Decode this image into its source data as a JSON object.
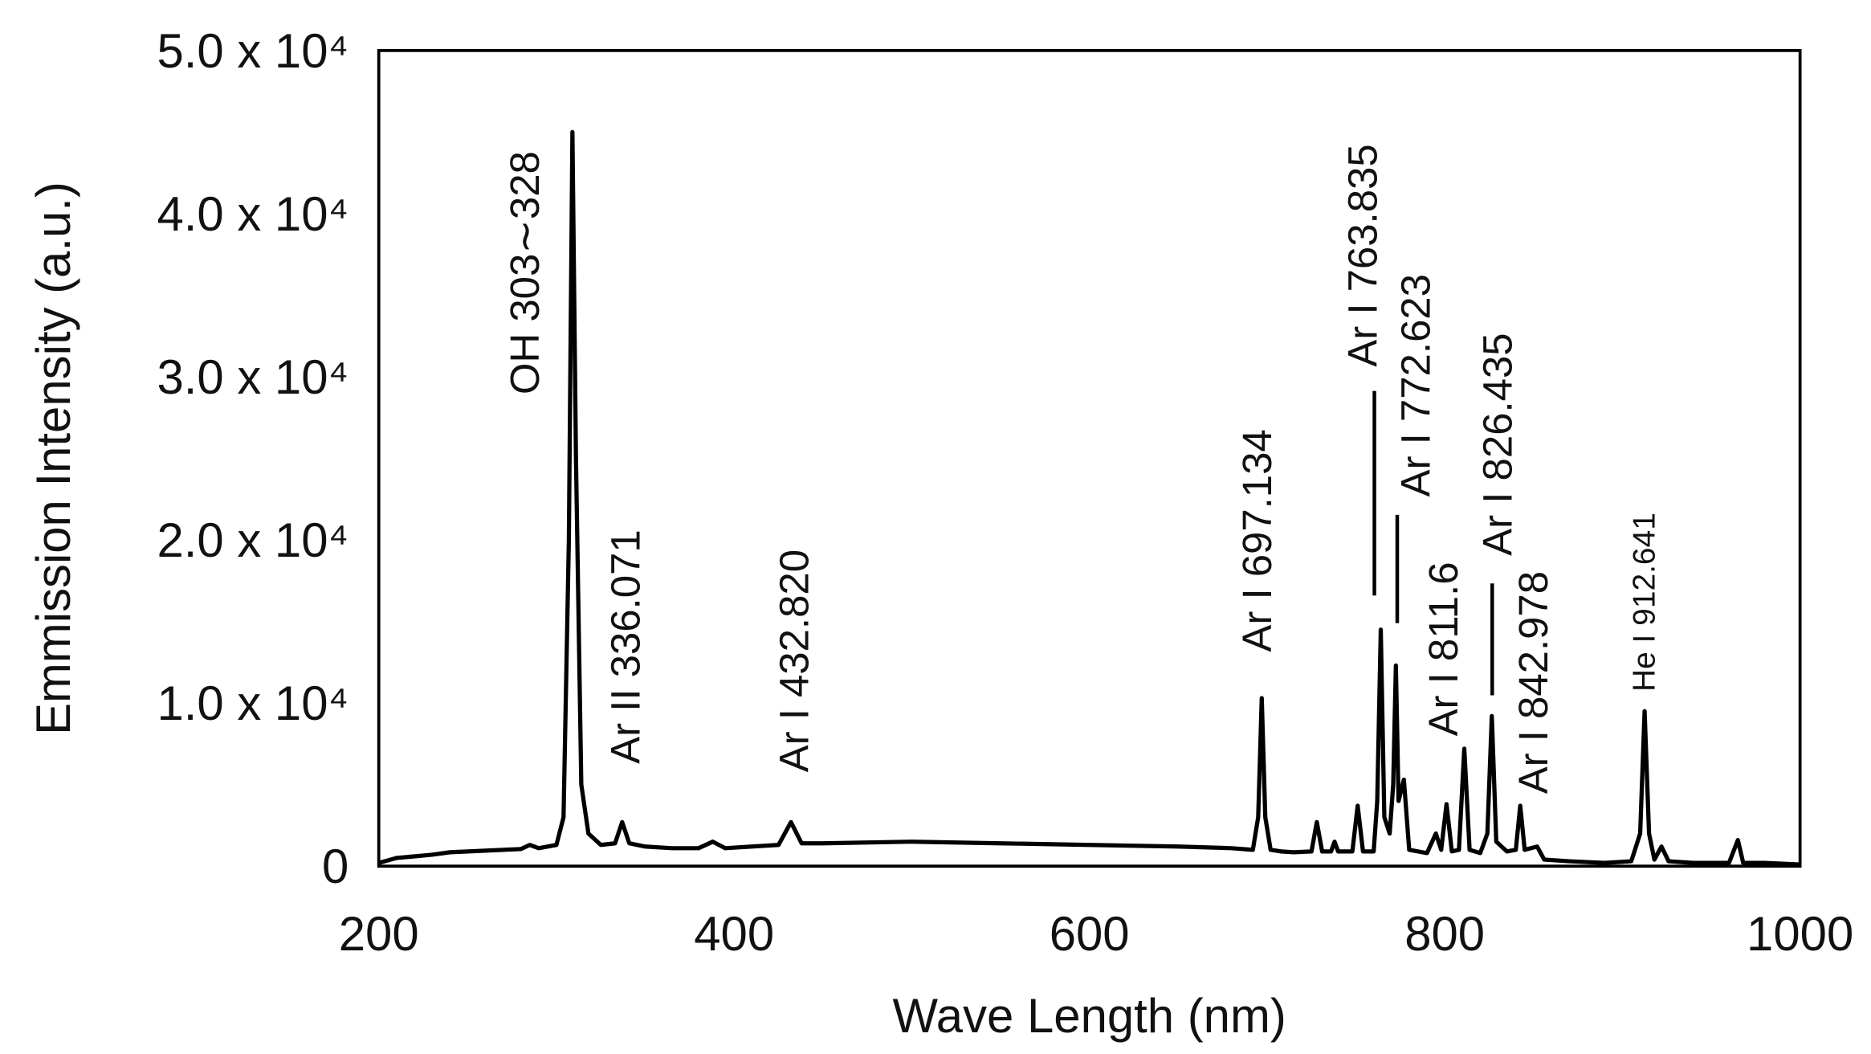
{
  "chart_data": {
    "type": "line",
    "xlabel": "Wave Length (nm)",
    "ylabel": "Emmission Intensity (a.u.)",
    "color": "#000000",
    "x": [
      200,
      210,
      220,
      230,
      240,
      250,
      260,
      270,
      280,
      285,
      290,
      300,
      304,
      307,
      309,
      311,
      314,
      318,
      325,
      333,
      337,
      341,
      350,
      365,
      380,
      388,
      395,
      410,
      425,
      432,
      438,
      450,
      500,
      550,
      600,
      650,
      680,
      692,
      695,
      697,
      699,
      702,
      708,
      715,
      725,
      728,
      731,
      736,
      738,
      740,
      748,
      751,
      754,
      760,
      762,
      764,
      766,
      769,
      771,
      772.5,
      774,
      777,
      780,
      790,
      795,
      798,
      801,
      804,
      808,
      811,
      814,
      820,
      824,
      826.5,
      829,
      835,
      840,
      842.5,
      845,
      852,
      856,
      870,
      890,
      905,
      910,
      912.5,
      915,
      918,
      922,
      926,
      940,
      960,
      965,
      968,
      980,
      1000
    ],
    "values": [
      200,
      500,
      600,
      700,
      850,
      900,
      950,
      1000,
      1050,
      1300,
      1100,
      1300,
      3000,
      20000,
      45000,
      25000,
      5000,
      2000,
      1300,
      1400,
      2700,
      1400,
      1200,
      1100,
      1100,
      1500,
      1100,
      1200,
      1300,
      2700,
      1400,
      1400,
      1500,
      1400,
      1300,
      1200,
      1100,
      1000,
      3000,
      10300,
      3000,
      1000,
      900,
      850,
      900,
      2700,
      900,
      900,
      1500,
      900,
      900,
      3700,
      900,
      900,
      4000,
      14500,
      3000,
      2000,
      5000,
      12300,
      4000,
      5300,
      1000,
      800,
      2000,
      1000,
      3800,
      900,
      1000,
      7200,
      1000,
      800,
      2000,
      9200,
      1500,
      900,
      1000,
      3700,
      1000,
      1200,
      400,
      300,
      200,
      300,
      2000,
      9500,
      2000,
      400,
      1200,
      300,
      200,
      200,
      1600,
      200,
      200,
      100
    ],
    "xlim": [
      200,
      1000
    ],
    "xticks": [
      200,
      400,
      600,
      800,
      1000
    ],
    "ylim": [
      0,
      50000
    ],
    "yticks": [
      0,
      {
        "value": 10000,
        "label": "1.0 x 10⁴"
      },
      {
        "value": 20000,
        "label": "2.0 x 10⁴"
      },
      {
        "value": 30000,
        "label": "3.0 x 10⁴"
      },
      {
        "value": 40000,
        "label": "4.0 x 10⁴"
      },
      {
        "value": 50000,
        "label": "5.0 x 10⁴"
      }
    ],
    "grid": false,
    "annotations": [
      "OH 303∼328",
      "Ar II 336.071",
      "Ar I 432.820",
      "Ar I 697.134",
      "Ar I 763.835",
      "Ar I 772.623",
      "Ar I 811.6",
      "Ar I 826.435",
      "Ar I 842.978",
      "He I 912.641"
    ]
  }
}
